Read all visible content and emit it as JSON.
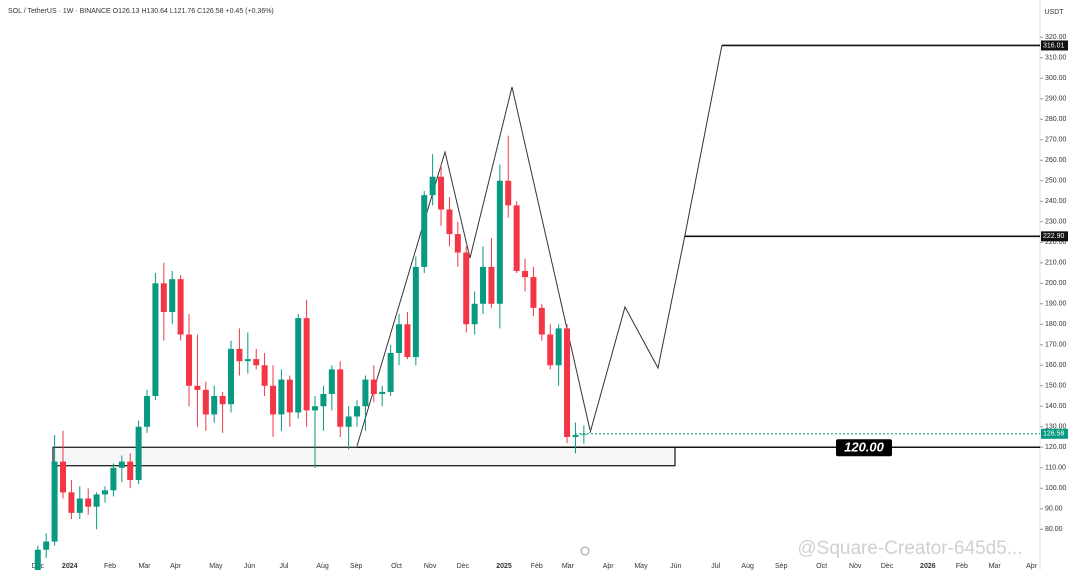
{
  "chart_data": {
    "type": "candlestick",
    "title": "SOL / TetherUS · 1W · BINANCE  O126.13  H130.64  L121.76  C126.58  +0.45 (+0.36%)",
    "currency": "USDT",
    "watermark": "@Square-Creator-645d5...",
    "up_color": "#089981",
    "down_color": "#f23645",
    "open": [
      60,
      70,
      74,
      113,
      98,
      88,
      95,
      91,
      97,
      99,
      110,
      113,
      104,
      130,
      145,
      200,
      186,
      202,
      175,
      150,
      148,
      136,
      145,
      141,
      168,
      162,
      163,
      160,
      150,
      136,
      153,
      137,
      183,
      138,
      140,
      146,
      158,
      130,
      135,
      140,
      153,
      146,
      147,
      166,
      180,
      164,
      208,
      243,
      252,
      236,
      224,
      215,
      180,
      190,
      208,
      190,
      250,
      238,
      206,
      203,
      188,
      175,
      160,
      178,
      125,
      126.13
    ],
    "high": [
      72,
      78,
      126,
      128,
      104,
      101,
      100,
      98,
      101,
      112,
      116,
      117,
      133,
      148,
      205,
      210,
      206,
      204,
      185,
      175,
      152,
      150,
      147,
      172,
      178,
      176,
      168,
      166,
      160,
      158,
      155,
      185,
      192,
      145,
      150,
      160,
      162,
      140,
      143,
      155,
      160,
      150,
      170,
      185,
      186,
      213,
      245,
      263,
      258,
      242,
      230,
      218,
      196,
      218,
      222,
      258,
      272,
      240,
      212,
      208,
      190,
      180,
      180,
      180,
      132,
      130.64
    ],
    "low": [
      58,
      66,
      72,
      95,
      85,
      85,
      87,
      80,
      93,
      96,
      103,
      100,
      102,
      127,
      143,
      172,
      180,
      172,
      140,
      130,
      128,
      132,
      127,
      137,
      155,
      156,
      158,
      145,
      125,
      128,
      130,
      134,
      130,
      110,
      128,
      138,
      125,
      119,
      130,
      128,
      142,
      140,
      145,
      160,
      163,
      160,
      205,
      238,
      228,
      218,
      208,
      176,
      175,
      185,
      188,
      178,
      232,
      205,
      196,
      184,
      172,
      158,
      150,
      122,
      117,
      121.76
    ],
    "close": [
      70,
      74,
      113,
      98,
      88,
      95,
      91,
      97,
      99,
      110,
      113,
      104,
      130,
      145,
      200,
      186,
      202,
      175,
      150,
      148,
      136,
      145,
      141,
      168,
      162,
      163,
      160,
      150,
      136,
      153,
      137,
      183,
      138,
      140,
      146,
      158,
      130,
      135,
      140,
      153,
      146,
      147,
      166,
      180,
      164,
      208,
      243,
      252,
      236,
      224,
      215,
      180,
      190,
      208,
      190,
      250,
      238,
      206,
      203,
      188,
      175,
      160,
      178,
      125,
      126,
      126.58
    ],
    "current_price": {
      "value": 126.58,
      "label": "126.58"
    },
    "levels": [
      {
        "value": 316.01,
        "label": "316.01"
      },
      {
        "value": 222.9,
        "label": "222.90"
      },
      {
        "value": 120,
        "label": "120.00"
      }
    ],
    "zone": [
      111,
      120
    ],
    "xlim": [
      -4.5,
      119.3
    ],
    "xticks": [
      {
        "value": 0,
        "label": "Dec"
      },
      {
        "value": 3.8,
        "label": "2024"
      },
      {
        "value": 8.6,
        "label": "Feb"
      },
      {
        "value": 12.7,
        "label": "Mar"
      },
      {
        "value": 16.4,
        "label": "Apr"
      },
      {
        "value": 21.2,
        "label": "May"
      },
      {
        "value": 25.2,
        "label": "Jun"
      },
      {
        "value": 29.3,
        "label": "Jul"
      },
      {
        "value": 33.9,
        "label": "Aug"
      },
      {
        "value": 37.9,
        "label": "Sep"
      },
      {
        "value": 42.7,
        "label": "Oct"
      },
      {
        "value": 46.7,
        "label": "Nov"
      },
      {
        "value": 50.6,
        "label": "Dec"
      },
      {
        "value": 55.5,
        "label": "2025"
      },
      {
        "value": 59.4,
        "label": "Feb"
      },
      {
        "value": 63.1,
        "label": "Mar"
      },
      {
        "value": 67.9,
        "label": "Apr"
      },
      {
        "value": 71.8,
        "label": "May"
      },
      {
        "value": 75.95,
        "label": "Jun"
      },
      {
        "value": 80.7,
        "label": "Jul"
      },
      {
        "value": 84.5,
        "label": "Aug"
      },
      {
        "value": 88.5,
        "label": "Sep"
      },
      {
        "value": 93.3,
        "label": "Oct"
      },
      {
        "value": 97.3,
        "label": "Nov"
      },
      {
        "value": 101.1,
        "label": "Dec"
      },
      {
        "value": 105.95,
        "label": "2026"
      },
      {
        "value": 110,
        "label": "Feb"
      },
      {
        "value": 113.9,
        "label": "Mar"
      },
      {
        "value": 118.3,
        "label": "Apr"
      }
    ],
    "ylim": [
      65,
      326
    ],
    "yticks": [
      {
        "value": 80,
        "label": "80.00"
      },
      {
        "value": 90,
        "label": "90.00"
      },
      {
        "value": 100,
        "label": "100.00"
      },
      {
        "value": 110,
        "label": "110.00"
      },
      {
        "value": 120,
        "label": "120.00"
      },
      {
        "value": 130,
        "label": "130.00"
      },
      {
        "value": 140,
        "label": "140.00"
      },
      {
        "value": 150,
        "label": "150.00"
      },
      {
        "value": 160,
        "label": "160.00"
      },
      {
        "value": 170,
        "label": "170.00"
      },
      {
        "value": 180,
        "label": "180.00"
      },
      {
        "value": 190,
        "label": "190.00"
      },
      {
        "value": 200,
        "label": "200.00"
      },
      {
        "value": 210,
        "label": "210.00"
      },
      {
        "value": 220,
        "label": "220.00"
      },
      {
        "value": 230,
        "label": "230.00"
      },
      {
        "value": 240,
        "label": "240.00"
      },
      {
        "value": 250,
        "label": "250.00"
      },
      {
        "value": 260,
        "label": "260.00"
      },
      {
        "value": 270,
        "label": "270.00"
      },
      {
        "value": 280,
        "label": "280.00"
      },
      {
        "value": 290,
        "label": "290.00"
      },
      {
        "value": 300,
        "label": "300.00"
      },
      {
        "value": 310,
        "label": "310.00"
      },
      {
        "value": 320,
        "label": "320.00"
      }
    ],
    "grid": false
  }
}
